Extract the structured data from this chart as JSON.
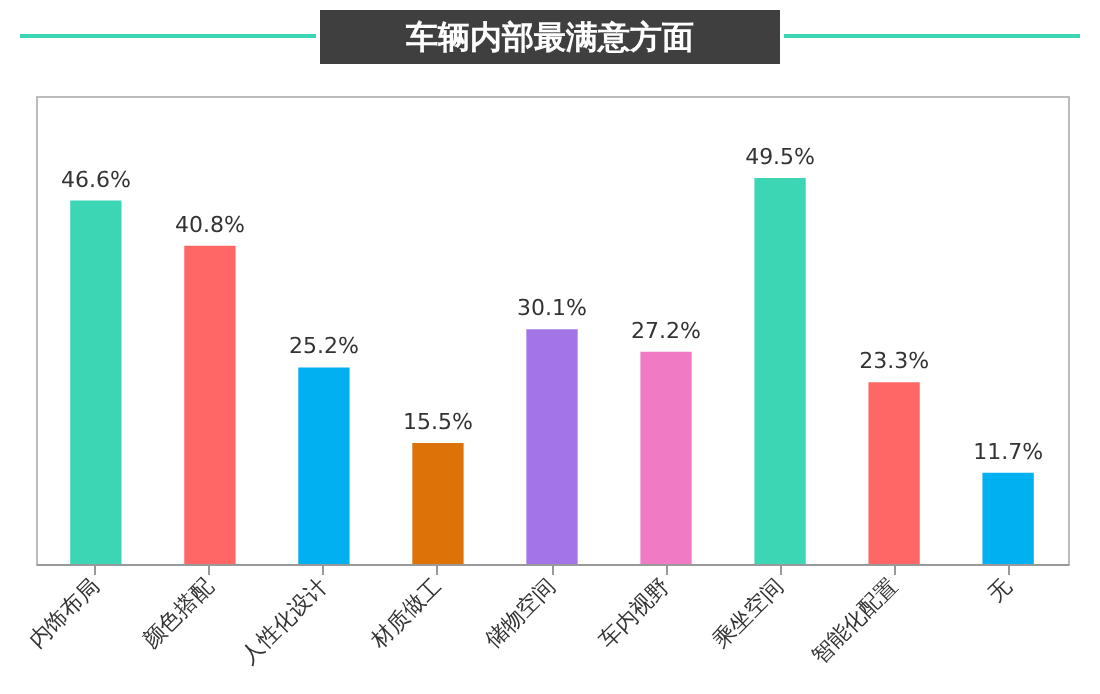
{
  "chart_data": {
    "type": "bar",
    "title": "车辆内部最满意方面",
    "categories": [
      "内饰布局",
      "颜色搭配",
      "人性化设计",
      "材质做工",
      "储物空间",
      "车内视野",
      "乘坐空间",
      "智能化配置",
      "无"
    ],
    "values": [
      46.6,
      40.8,
      25.2,
      15.5,
      30.1,
      27.2,
      49.5,
      23.3,
      11.7
    ],
    "colors": [
      "#3dd6b5",
      "#ff6666",
      "#00b0f0",
      "#dd7209",
      "#a274e6",
      "#f07ac4",
      "#3dd6b5",
      "#ff6666",
      "#00b0f0"
    ],
    "value_labels": [
      "46.6%",
      "40.8%",
      "25.2%",
      "15.5%",
      "30.1%",
      "27.2%",
      "49.5%",
      "23.3%",
      "11.7%"
    ],
    "grid": false
  }
}
